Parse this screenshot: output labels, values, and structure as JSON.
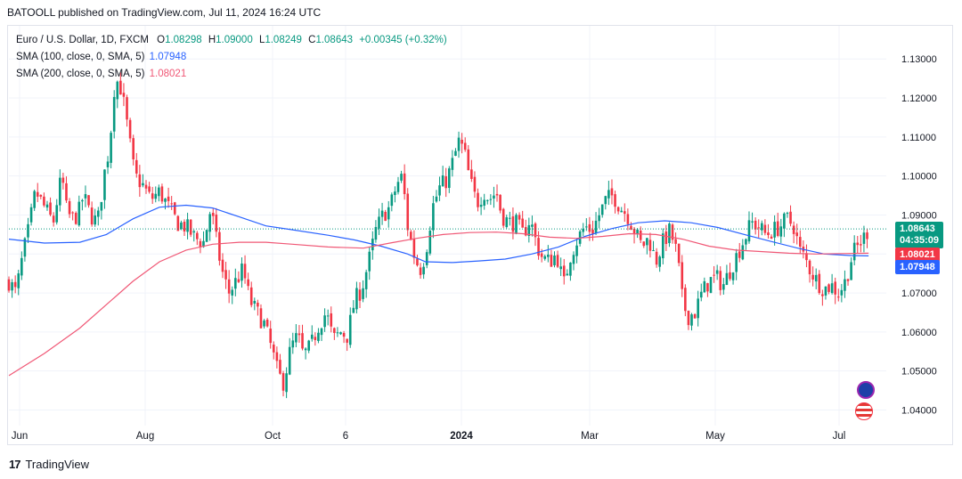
{
  "header": {
    "publisher": "BATOOLL published on TradingView.com, Jul 11, 2024 16:24 UTC"
  },
  "legend": {
    "symbol": "Euro / U.S. Dollar, 1D, FXCM",
    "open_label": "O",
    "open": "1.08298",
    "high_label": "H",
    "high": "1.09000",
    "low_label": "L",
    "low": "1.08249",
    "close_label": "C",
    "close": "1.08643",
    "change": "+0.00345 (+0.32%)",
    "sma100_label": "SMA (100, close, 0, SMA, 5)",
    "sma100_value": "1.07948",
    "sma200_label": "SMA (200, close, 0, SMA, 5)",
    "sma200_value": "1.08021"
  },
  "price_badge": {
    "price": "1.08643",
    "countdown": "04:35:09"
  },
  "sma200_badge": "1.08021",
  "sma100_badge": "1.07948",
  "footer": {
    "brand": "TradingView"
  },
  "colors": {
    "up": "#089981",
    "down": "#f23645",
    "sma100": "#2962ff",
    "sma200": "#f05876"
  },
  "chart_data": {
    "type": "candlestick",
    "y_ticks": [
      "1.13000",
      "1.12000",
      "1.11000",
      "1.10000",
      "1.09000",
      "1.08000",
      "1.07000",
      "1.06000",
      "1.05000",
      "1.04000"
    ],
    "ylim": [
      1.036,
      1.1385
    ],
    "x_ticks": [
      "Jun",
      "Aug",
      "Oct",
      "6",
      "2024",
      "Mar",
      "May",
      "Jul"
    ],
    "grid": true,
    "series": [
      {
        "name": "Euro / U.S. Dollar",
        "kind": "close_path",
        "points": [
          [
            0,
            1.073
          ],
          [
            8,
            1.07
          ],
          [
            16,
            1.08
          ],
          [
            22,
            1.086
          ],
          [
            30,
            1.096
          ],
          [
            40,
            1.092
          ],
          [
            50,
            1.088
          ],
          [
            56,
            1.096
          ],
          [
            60,
            1.1
          ],
          [
            64,
            1.092
          ],
          [
            70,
            1.089
          ],
          [
            78,
            1.09
          ],
          [
            84,
            1.095
          ],
          [
            92,
            1.09
          ],
          [
            100,
            1.088
          ],
          [
            108,
            1.101
          ],
          [
            114,
            1.108
          ],
          [
            118,
            1.122
          ],
          [
            124,
            1.125
          ],
          [
            130,
            1.118
          ],
          [
            136,
            1.109
          ],
          [
            142,
            1.1
          ],
          [
            150,
            1.098
          ],
          [
            160,
            1.094
          ],
          [
            170,
            1.096
          ],
          [
            180,
            1.092
          ],
          [
            190,
            1.088
          ],
          [
            200,
            1.087
          ],
          [
            210,
            1.084
          ],
          [
            220,
            1.083
          ],
          [
            228,
            1.092
          ],
          [
            232,
            1.086
          ],
          [
            240,
            1.076
          ],
          [
            248,
            1.07
          ],
          [
            256,
            1.073
          ],
          [
            264,
            1.076
          ],
          [
            272,
            1.068
          ],
          [
            280,
            1.065
          ],
          [
            288,
            1.062
          ],
          [
            296,
            1.056
          ],
          [
            304,
            1.049
          ],
          [
            310,
            1.047
          ],
          [
            318,
            1.056
          ],
          [
            326,
            1.059
          ],
          [
            332,
            1.054
          ],
          [
            340,
            1.056
          ],
          [
            350,
            1.062
          ],
          [
            358,
            1.065
          ],
          [
            366,
            1.058
          ],
          [
            374,
            1.06
          ],
          [
            382,
            1.059
          ],
          [
            390,
            1.068
          ],
          [
            398,
            1.071
          ],
          [
            406,
            1.078
          ],
          [
            414,
            1.086
          ],
          [
            422,
            1.09
          ],
          [
            430,
            1.092
          ],
          [
            438,
            1.098
          ],
          [
            444,
            1.1
          ],
          [
            450,
            1.087
          ],
          [
            458,
            1.079
          ],
          [
            464,
            1.076
          ],
          [
            470,
            1.08
          ],
          [
            478,
            1.092
          ],
          [
            486,
            1.097
          ],
          [
            494,
            1.099
          ],
          [
            500,
            1.103
          ],
          [
            508,
            1.109
          ],
          [
            514,
            1.106
          ],
          [
            520,
            1.099
          ],
          [
            528,
            1.093
          ],
          [
            536,
            1.096
          ],
          [
            542,
            1.094
          ],
          [
            550,
            1.096
          ],
          [
            556,
            1.09
          ],
          [
            564,
            1.088
          ],
          [
            572,
            1.088
          ],
          [
            580,
            1.085
          ],
          [
            588,
            1.089
          ],
          [
            596,
            1.082
          ],
          [
            602,
            1.079
          ],
          [
            610,
            1.078
          ],
          [
            618,
            1.08
          ],
          [
            626,
            1.072
          ],
          [
            634,
            1.08
          ],
          [
            642,
            1.084
          ],
          [
            650,
            1.087
          ],
          [
            658,
            1.086
          ],
          [
            666,
            1.09
          ],
          [
            674,
            1.094
          ],
          [
            682,
            1.095
          ],
          [
            690,
            1.092
          ],
          [
            698,
            1.09
          ],
          [
            706,
            1.086
          ],
          [
            714,
            1.082
          ],
          [
            722,
            1.084
          ],
          [
            730,
            1.078
          ],
          [
            738,
            1.083
          ],
          [
            746,
            1.086
          ],
          [
            754,
            1.08
          ],
          [
            760,
            1.068
          ],
          [
            766,
            1.064
          ],
          [
            774,
            1.065
          ],
          [
            782,
            1.07
          ],
          [
            790,
            1.073
          ],
          [
            798,
            1.074
          ],
          [
            806,
            1.072
          ],
          [
            814,
            1.076
          ],
          [
            822,
            1.08
          ],
          [
            830,
            1.084
          ],
          [
            838,
            1.088
          ],
          [
            846,
            1.087
          ],
          [
            854,
            1.085
          ],
          [
            862,
            1.086
          ],
          [
            870,
            1.087
          ],
          [
            878,
            1.089
          ],
          [
            886,
            1.087
          ],
          [
            892,
            1.081
          ],
          [
            898,
            1.079
          ],
          [
            904,
            1.076
          ],
          [
            912,
            1.073
          ],
          [
            920,
            1.071
          ],
          [
            928,
            1.072
          ],
          [
            936,
            1.07
          ],
          [
            944,
            1.073
          ],
          [
            952,
            1.08
          ],
          [
            958,
            1.082
          ],
          [
            964,
            1.084
          ],
          [
            970,
            1.0864
          ]
        ]
      },
      {
        "name": "SMA (100, close, 0, SMA, 5)",
        "kind": "line",
        "color": "#2962ff",
        "points": [
          [
            0,
            1.0838
          ],
          [
            40,
            1.0828
          ],
          [
            80,
            1.083
          ],
          [
            110,
            1.085
          ],
          [
            140,
            1.089
          ],
          [
            170,
            1.092
          ],
          [
            200,
            1.0925
          ],
          [
            230,
            1.0918
          ],
          [
            260,
            1.0895
          ],
          [
            290,
            1.0872
          ],
          [
            320,
            1.0862
          ],
          [
            360,
            1.0848
          ],
          [
            390,
            1.0836
          ],
          [
            420,
            1.082
          ],
          [
            450,
            1.08
          ],
          [
            470,
            1.078
          ],
          [
            500,
            1.0778
          ],
          [
            530,
            1.0782
          ],
          [
            560,
            1.0787
          ],
          [
            590,
            1.08
          ],
          [
            620,
            1.0818
          ],
          [
            650,
            1.0845
          ],
          [
            680,
            1.0865
          ],
          [
            710,
            1.088
          ],
          [
            740,
            1.0885
          ],
          [
            770,
            1.088
          ],
          [
            800,
            1.0868
          ],
          [
            830,
            1.085
          ],
          [
            860,
            1.0832
          ],
          [
            890,
            1.0815
          ],
          [
            920,
            1.08
          ],
          [
            950,
            1.0796
          ],
          [
            970,
            1.0795
          ]
        ]
      },
      {
        "name": "SMA (200, close, 0, SMA, 5)",
        "kind": "line",
        "color": "#f05876",
        "points": [
          [
            0,
            1.0488
          ],
          [
            40,
            1.0545
          ],
          [
            80,
            1.061
          ],
          [
            110,
            1.067
          ],
          [
            140,
            1.073
          ],
          [
            170,
            1.078
          ],
          [
            200,
            1.081
          ],
          [
            230,
            1.0825
          ],
          [
            260,
            1.083
          ],
          [
            290,
            1.083
          ],
          [
            320,
            1.0825
          ],
          [
            360,
            1.0818
          ],
          [
            400,
            1.0815
          ],
          [
            430,
            1.0828
          ],
          [
            460,
            1.084
          ],
          [
            490,
            1.085
          ],
          [
            520,
            1.0855
          ],
          [
            550,
            1.0856
          ],
          [
            580,
            1.0852
          ],
          [
            610,
            1.0843
          ],
          [
            640,
            1.084
          ],
          [
            670,
            1.0845
          ],
          [
            700,
            1.0852
          ],
          [
            730,
            1.085
          ],
          [
            760,
            1.0838
          ],
          [
            790,
            1.082
          ],
          [
            820,
            1.081
          ],
          [
            850,
            1.0806
          ],
          [
            880,
            1.0802
          ],
          [
            910,
            1.08
          ],
          [
            940,
            1.0801
          ],
          [
            970,
            1.0802
          ]
        ]
      }
    ]
  }
}
